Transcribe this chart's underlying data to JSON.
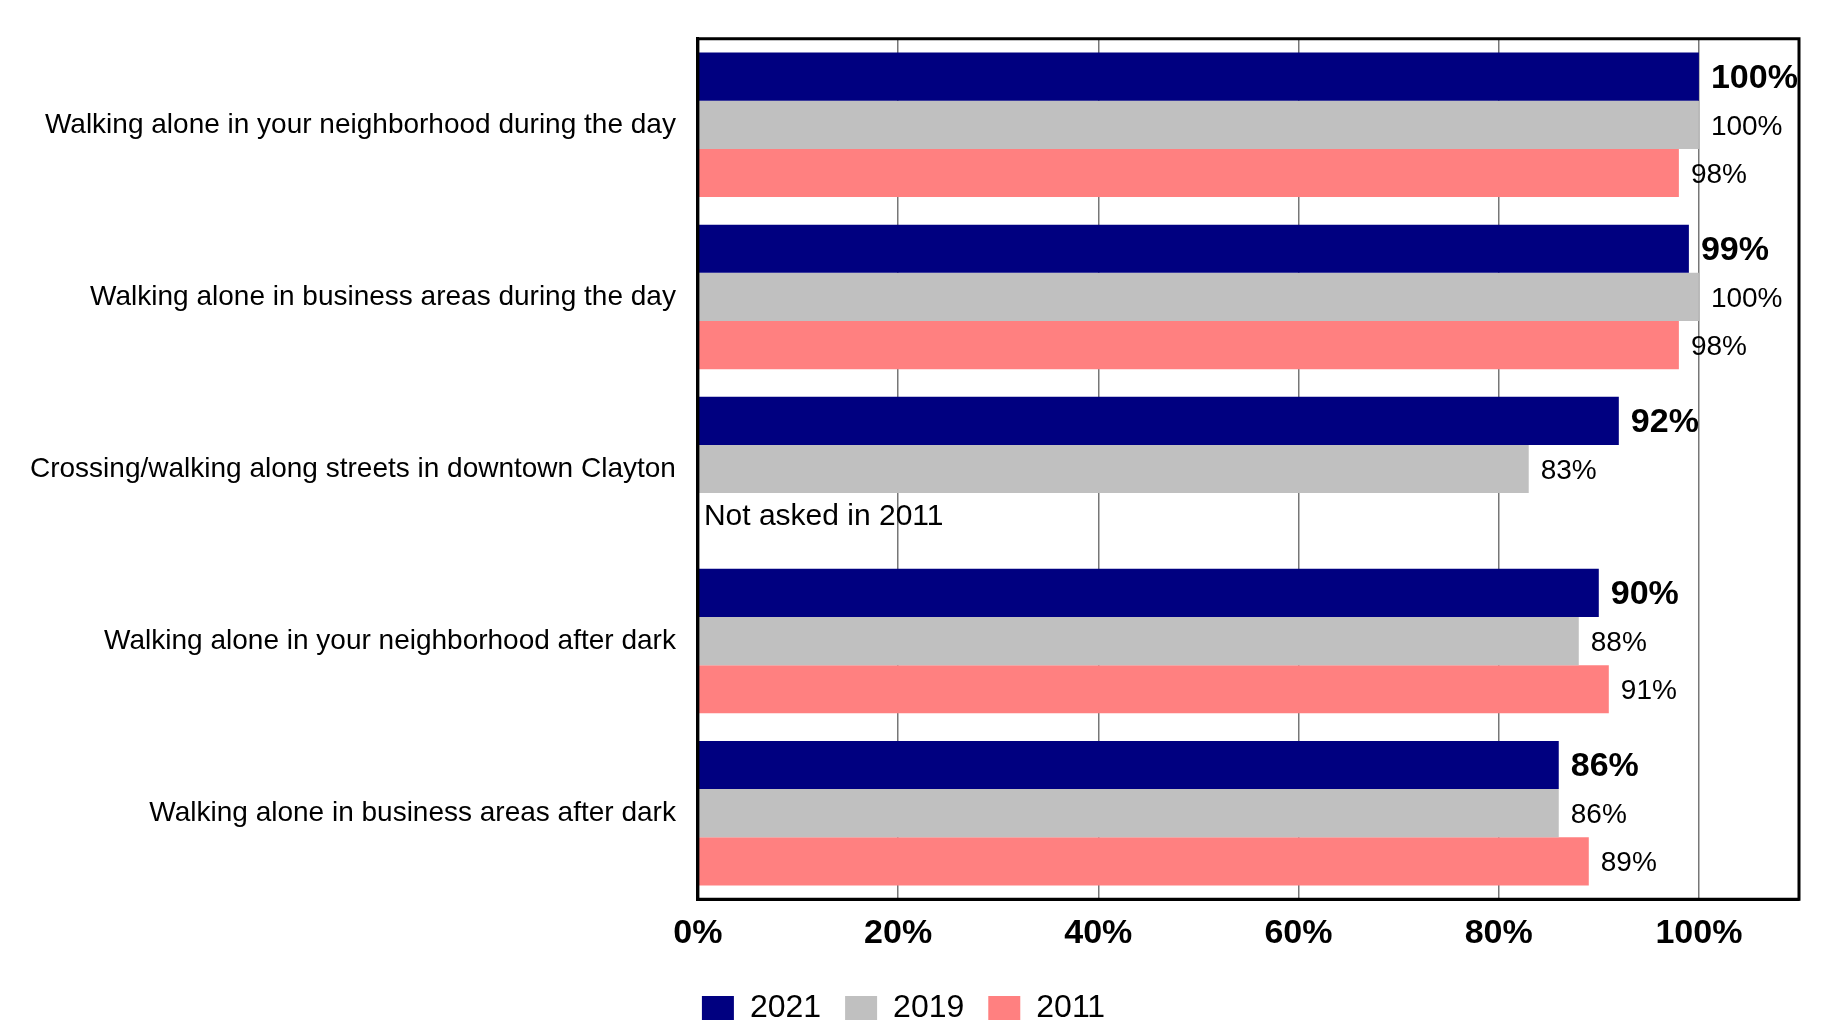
{
  "chart_data": {
    "type": "bar",
    "orientation": "horizontal",
    "categories": [
      "Walking alone in your neighborhood during the day",
      "Walking alone in business areas during the day",
      "Crossing/walking along streets in downtown Clayton",
      "Walking alone in your neighborhood after dark",
      "Walking alone in business areas after dark"
    ],
    "series": [
      {
        "name": "2021",
        "color": "#000080",
        "values": [
          100,
          99,
          92,
          90,
          86
        ],
        "value_labels": [
          "100%",
          "99%",
          "92%",
          "90%",
          "86%"
        ]
      },
      {
        "name": "2019",
        "color": "#c0c0c0",
        "values": [
          100,
          100,
          83,
          88,
          86
        ],
        "value_labels": [
          "100%",
          "100%",
          "83%",
          "88%",
          "86%"
        ]
      },
      {
        "name": "2011",
        "color": "#ff8080",
        "values": [
          98,
          98,
          null,
          91,
          89
        ],
        "value_labels": [
          "98%",
          "98%",
          null,
          "91%",
          "89%"
        ]
      }
    ],
    "xlim": [
      0,
      110
    ],
    "xticks": [
      {
        "value": 0,
        "label": "0%"
      },
      {
        "value": 20,
        "label": "20%"
      },
      {
        "value": 40,
        "label": "40%"
      },
      {
        "value": 60,
        "label": "60%"
      },
      {
        "value": 80,
        "label": "80%"
      },
      {
        "value": 100,
        "label": "100%"
      }
    ],
    "grid": "x",
    "legend": "bottom",
    "annotations": [
      {
        "text": "Not asked in 2011",
        "x": 0,
        "y": "Crossing/walking along streets in downtown Clayton"
      }
    ]
  }
}
